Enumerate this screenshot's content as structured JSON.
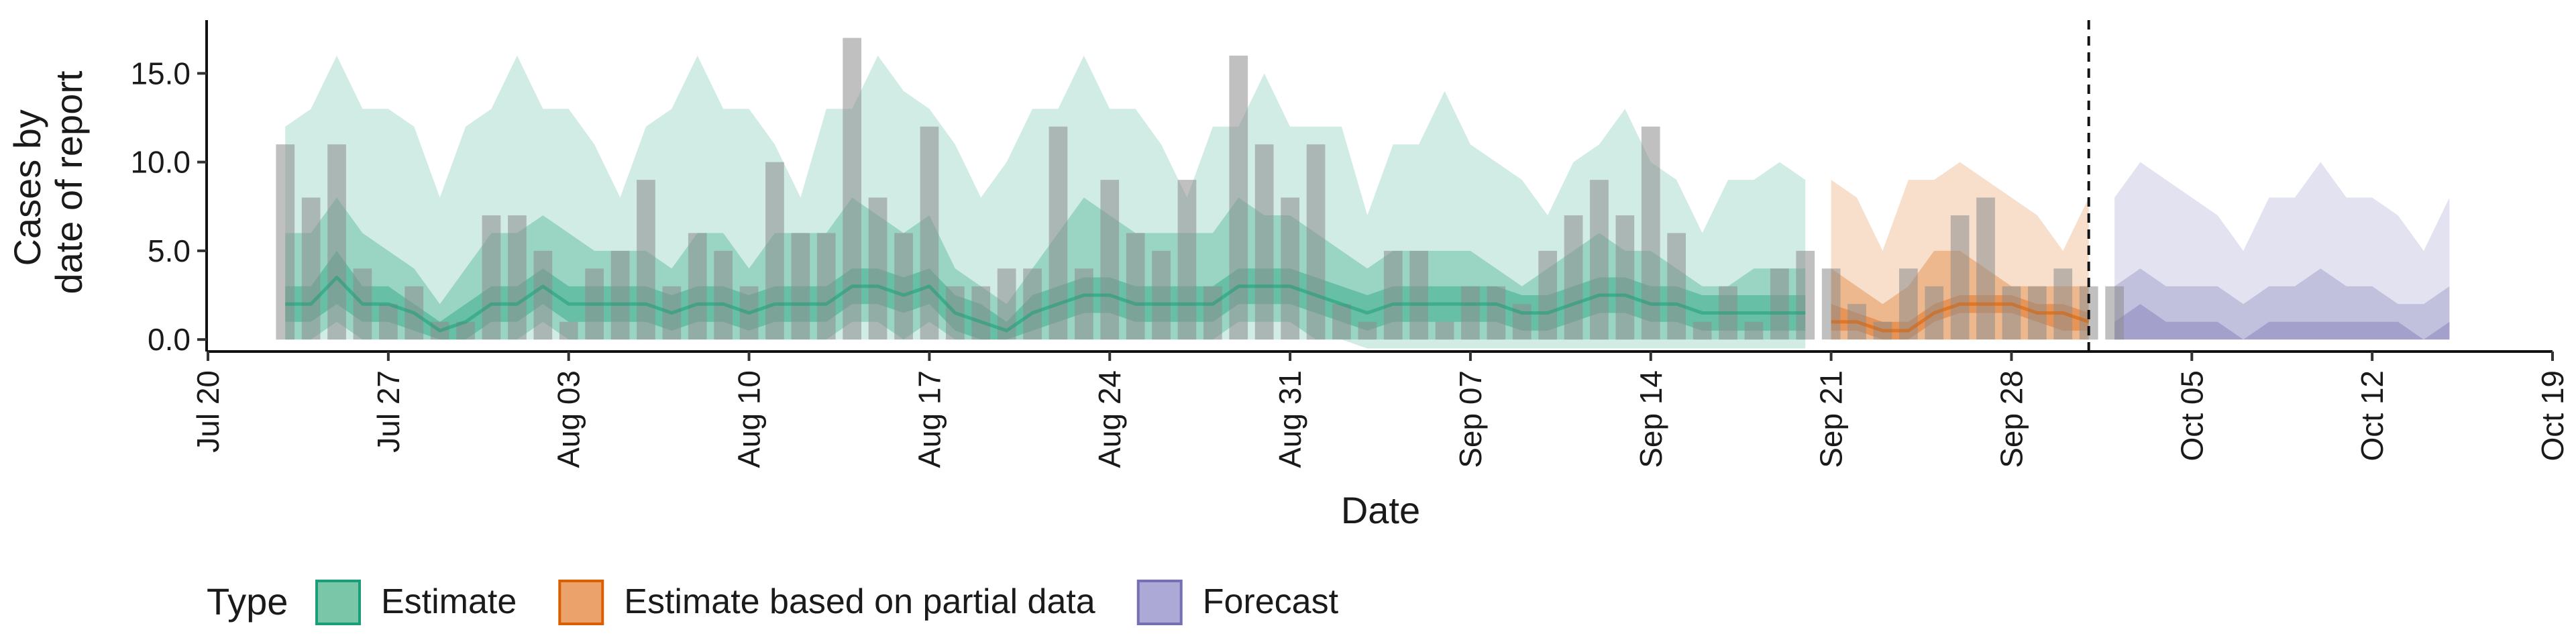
{
  "chart_data": {
    "type": "area",
    "xlabel": "Date",
    "ylabel_lines": [
      "Cases by",
      "date of report"
    ],
    "ylim": [
      -0.6,
      18
    ],
    "y_ticks": [
      0,
      5,
      10,
      15
    ],
    "y_tick_labels": [
      "0.0",
      "5.0",
      "10.0",
      "15.0"
    ],
    "x_range": [
      "2020-07-20",
      "2020-10-19"
    ],
    "x_ticks": [
      "2020-07-20",
      "2020-07-27",
      "2020-08-03",
      "2020-08-10",
      "2020-08-17",
      "2020-08-24",
      "2020-08-31",
      "2020-09-07",
      "2020-09-14",
      "2020-09-21",
      "2020-09-28",
      "2020-10-05",
      "2020-10-12",
      "2020-10-19"
    ],
    "x_tick_labels": [
      "Jul 20",
      "Jul 27",
      "Aug 03",
      "Aug 10",
      "Aug 17",
      "Aug 24",
      "Aug 31",
      "Sep 07",
      "Sep 14",
      "Sep 21",
      "Sep 28",
      "Oct 05",
      "Oct 12",
      "Oct 19"
    ],
    "forecast_cutoff_date": "2020-10-01",
    "colors": {
      "Estimate": "#1b9e77",
      "Estimate based on partial data": "#d95f02",
      "Forecast": "#7570b3",
      "bars": "#8c8c8c"
    },
    "observed_cases": {
      "start_date": "2020-07-23",
      "values": [
        11,
        8,
        11,
        4,
        2,
        3,
        1,
        1,
        7,
        7,
        5,
        1,
        4,
        5,
        9,
        3,
        6,
        5,
        3,
        10,
        6,
        6,
        17,
        8,
        6,
        12,
        3,
        3,
        4,
        4,
        12,
        4,
        9,
        6,
        5,
        9,
        3,
        16,
        11,
        8,
        11,
        2,
        1,
        5,
        5,
        1,
        3,
        3,
        2,
        5,
        7,
        9,
        7,
        12,
        6,
        1,
        3,
        1,
        4,
        5,
        4,
        2,
        1,
        4,
        3,
        7,
        8,
        3,
        3,
        4,
        3,
        3
      ]
    },
    "series": [
      {
        "name": "Estimate",
        "start_date": "2020-07-23",
        "median": [
          2,
          2,
          3.5,
          2,
          2,
          1.5,
          0.5,
          1,
          2,
          2,
          3,
          2,
          2,
          2,
          2,
          1.5,
          2,
          2,
          1.5,
          2,
          2,
          2,
          3,
          3,
          2.5,
          3,
          1.5,
          1,
          0.5,
          1.5,
          2,
          2.5,
          2.5,
          2,
          2,
          2,
          2,
          3,
          3,
          3,
          2.5,
          2,
          1.5,
          2,
          2,
          2,
          2,
          2,
          1.5,
          1.5,
          2,
          2.5,
          2.5,
          2,
          2,
          1.5,
          1.5,
          1.5,
          1.5,
          1.5
        ],
        "inner_lo": [
          1,
          1,
          2,
          1,
          1,
          0.5,
          0,
          0,
          1,
          1,
          2,
          1,
          1,
          1,
          1,
          0.5,
          1,
          1,
          0.5,
          1,
          1,
          1,
          2,
          2,
          1.5,
          2,
          0.5,
          0,
          0,
          0.5,
          1,
          1.5,
          1.5,
          1,
          1,
          1,
          1,
          2,
          2,
          2,
          1.5,
          1,
          0.5,
          1,
          1,
          1,
          1,
          1,
          0.5,
          0.5,
          1,
          1.5,
          1.5,
          1,
          1,
          0.5,
          0.5,
          0.5,
          0.5,
          0.5
        ],
        "inner_hi": [
          3,
          3,
          5,
          3,
          3,
          2,
          1,
          2,
          3,
          3,
          4,
          3,
          3,
          3,
          3,
          2.5,
          3,
          3,
          2.5,
          3,
          3,
          3,
          4,
          4,
          3.5,
          4,
          2.5,
          2,
          1,
          2.5,
          3,
          3.5,
          3.5,
          3,
          3,
          3,
          3,
          4,
          4,
          4,
          3.5,
          3,
          2.5,
          3,
          3,
          3,
          3,
          3,
          2.5,
          2.5,
          3,
          3.5,
          3.5,
          3,
          3,
          2.5,
          2.5,
          2.5,
          2.5,
          2.5
        ],
        "mid_lo": [
          0,
          0,
          1,
          0,
          0,
          0,
          0,
          0,
          0,
          0,
          1,
          0,
          0,
          0,
          0,
          0,
          0,
          0,
          0,
          0,
          0,
          0,
          1,
          1,
          0,
          1,
          0,
          0,
          0,
          0,
          0,
          0,
          0,
          0,
          0,
          0,
          0,
          1,
          1,
          1,
          0,
          0,
          0,
          0,
          0,
          0,
          0,
          0,
          0,
          0,
          0,
          0,
          0,
          0,
          0,
          0,
          0,
          0,
          0,
          0
        ],
        "mid_hi": [
          6,
          6,
          8,
          6,
          5,
          4,
          2,
          4,
          6,
          6,
          7,
          6,
          5,
          5,
          5,
          4,
          6,
          6,
          4,
          6,
          6,
          6,
          8,
          7,
          6,
          7,
          4,
          3,
          2,
          4,
          6,
          8,
          7,
          6,
          6,
          6,
          6,
          8,
          7,
          7,
          6,
          5,
          4,
          5,
          5,
          5,
          5,
          4,
          3,
          4,
          5,
          6,
          5,
          5,
          4,
          3,
          3,
          4,
          4,
          4
        ],
        "outer_lo": [
          0,
          0,
          0,
          0,
          0,
          0,
          0,
          0,
          0,
          0,
          0,
          0,
          0,
          0,
          0,
          0,
          0,
          0,
          0,
          0,
          0,
          0,
          0,
          0,
          0,
          0,
          0,
          0,
          0,
          0,
          0,
          0,
          0,
          0,
          0,
          0,
          0,
          0,
          0,
          0,
          0,
          0,
          -0.5,
          -0.5,
          -0.5,
          -0.5,
          -0.5,
          -0.5,
          -0.5,
          -0.5,
          -0.5,
          -0.5,
          -0.5,
          -0.5,
          -0.5,
          -0.5,
          -0.5,
          -0.5,
          -0.5,
          -0.5
        ],
        "outer_hi": [
          12,
          13,
          16,
          13,
          13,
          12,
          8,
          12,
          13,
          16,
          13,
          13,
          11,
          8,
          12,
          13,
          16,
          13,
          13,
          11,
          8,
          13,
          13,
          16,
          14,
          13,
          11,
          8,
          10,
          13,
          13,
          16,
          13,
          13,
          11,
          8,
          12,
          12,
          15,
          12,
          12,
          12,
          7,
          11,
          11,
          14,
          11,
          10,
          9,
          7,
          10,
          11,
          13,
          10,
          9,
          6,
          9,
          9,
          10,
          9
        ]
      },
      {
        "name": "Estimate based on partial data",
        "start_date": "2020-09-21",
        "median": [
          1,
          1,
          0.5,
          0.5,
          1.5,
          2,
          2,
          2,
          1.5,
          1.5,
          1
        ],
        "inner_lo": [
          0.5,
          0.5,
          0,
          0,
          1,
          1.5,
          1.5,
          1.5,
          1,
          0.5,
          0.5
        ],
        "inner_hi": [
          2,
          1.5,
          1,
          1,
          2,
          2.5,
          2.5,
          2.5,
          2,
          2,
          1.5
        ],
        "mid_lo": [
          0,
          0,
          0,
          0,
          0,
          0,
          0,
          0,
          0,
          0,
          0
        ],
        "mid_hi": [
          4,
          3,
          2,
          3,
          5,
          5,
          4,
          3,
          3,
          3,
          3
        ],
        "outer_lo": [
          0,
          0,
          0,
          0,
          0,
          0,
          0,
          0,
          0,
          0,
          0
        ],
        "outer_hi": [
          9,
          8,
          5,
          9,
          9,
          10,
          9,
          8,
          7,
          5,
          8
        ]
      },
      {
        "name": "Forecast",
        "start_date": "2020-10-02",
        "inner_lo": [
          0,
          0,
          0,
          0,
          0,
          0,
          0,
          0,
          0,
          0,
          0,
          0,
          0,
          0
        ],
        "inner_hi": [
          1,
          2,
          1,
          1,
          1,
          0,
          1,
          1,
          1,
          1,
          1,
          1,
          0,
          1
        ],
        "mid_lo": [
          0,
          0,
          0,
          0,
          0,
          0,
          0,
          0,
          0,
          0,
          0,
          0,
          0,
          0
        ],
        "mid_hi": [
          3,
          4,
          3,
          3,
          3,
          2,
          3,
          3,
          4,
          3,
          3,
          2,
          2,
          3
        ],
        "outer_lo": [
          0,
          0,
          0,
          0,
          0,
          0,
          0,
          0,
          0,
          0,
          0,
          0,
          0,
          0
        ],
        "outer_hi": [
          8,
          10,
          9,
          8,
          7,
          5,
          8,
          8,
          10,
          8,
          8,
          7,
          5,
          8
        ]
      }
    ],
    "legend": {
      "title": "Type",
      "entries": [
        {
          "label": "Estimate",
          "fill": "#79c6a8",
          "stroke": "#1b9e77"
        },
        {
          "label": "Estimate based on partial data",
          "fill": "#eca26b",
          "stroke": "#d95f02"
        },
        {
          "label": "Forecast",
          "fill": "#ada9d6",
          "stroke": "#7570b3"
        }
      ],
      "position": "bottom-left"
    },
    "grid": false
  }
}
